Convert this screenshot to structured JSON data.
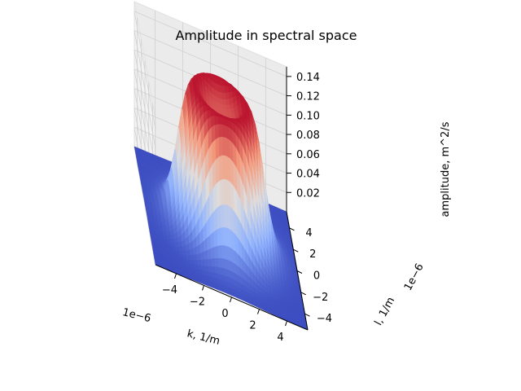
{
  "chart_data": {
    "type": "surface3d",
    "title": "Amplitude in spectral space",
    "xlabel": "k, 1/m",
    "ylabel": "l, 1/m",
    "zlabel": "amplitude, m^2/s",
    "x_scale_label": "1e−6",
    "y_scale_label": "1e−6",
    "x_ticks": [
      -4,
      -2,
      0,
      2,
      4
    ],
    "x_tick_labels": [
      "−4",
      "−2",
      "0",
      "2",
      "4"
    ],
    "y_ticks": [
      -4,
      -2,
      0,
      2,
      4
    ],
    "y_tick_labels": [
      "−4",
      "−2",
      "0",
      "2",
      "4"
    ],
    "z_ticks": [
      0.02,
      0.04,
      0.06,
      0.08,
      0.1,
      0.12,
      0.14
    ],
    "z_tick_labels": [
      "0.02",
      "0.04",
      "0.06",
      "0.08",
      "0.10",
      "0.12",
      "0.14"
    ],
    "xlim": [
      -5.5,
      5.5
    ],
    "ylim": [
      -5.5,
      5.5
    ],
    "zlim": [
      0,
      0.15
    ],
    "colormap": "coolwarm",
    "grid": true,
    "surface": {
      "shape": "annular ring peak centered at origin",
      "peak_amplitude": 0.15,
      "peak_radius": 1.5,
      "inner_dip_amplitude": 0.13,
      "base_amplitude": 0.0,
      "falloff_radius": 3.2
    }
  }
}
